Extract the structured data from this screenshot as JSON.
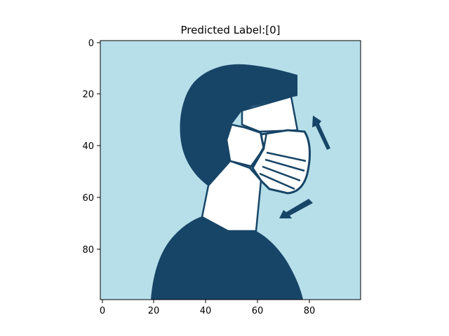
{
  "figure": {
    "title": "Predicted Label:[0]",
    "colors": {
      "background": "#b7dfea",
      "foreground": "#174567",
      "mask": "#ffffff",
      "axes": "#000000"
    },
    "x_axis": {
      "ticks": [
        0,
        20,
        40,
        60,
        80
      ],
      "range": [
        0,
        99
      ]
    },
    "y_axis": {
      "ticks": [
        0,
        20,
        40,
        60,
        80
      ],
      "range": [
        0,
        99
      ],
      "inverted": true
    },
    "image": {
      "size": [
        100,
        100
      ],
      "subject": "profile-of-person-wearing-face-mask-icon"
    }
  }
}
